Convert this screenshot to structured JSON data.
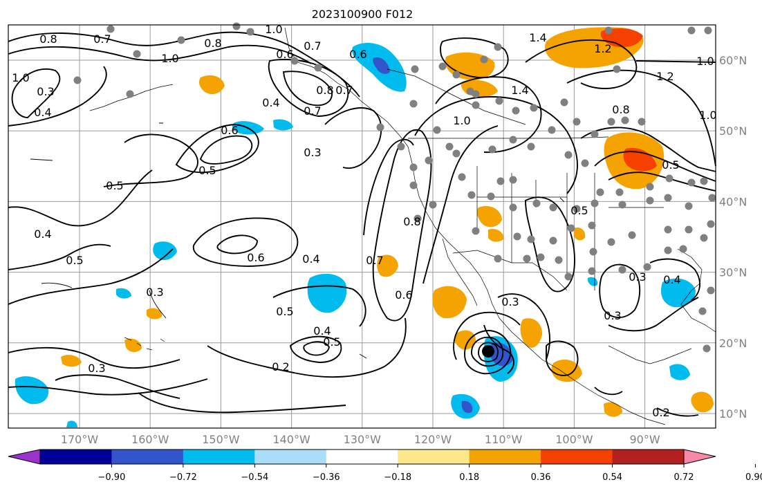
{
  "title": "2023100900 F012",
  "map": {
    "lon_ticks": [
      {
        "value": -170,
        "label": "170°W"
      },
      {
        "value": -160,
        "label": "160°W"
      },
      {
        "value": -150,
        "label": "150°W"
      },
      {
        "value": -140,
        "label": "140°W"
      },
      {
        "value": -130,
        "label": "130°W"
      },
      {
        "value": -120,
        "label": "120°W"
      },
      {
        "value": -110,
        "label": "110°W"
      },
      {
        "value": -100,
        "label": "100°W"
      },
      {
        "value": -90,
        "label": "90°W"
      }
    ],
    "lat_ticks": [
      {
        "value": 60,
        "label": "60°N"
      },
      {
        "value": 50,
        "label": "50°N"
      },
      {
        "value": 40,
        "label": "40°N"
      },
      {
        "value": 30,
        "label": "30°N"
      },
      {
        "value": 20,
        "label": "20°N"
      },
      {
        "value": 10,
        "label": "10°N"
      }
    ],
    "contour_labels": [
      "0.8",
      "0.7",
      "1.0",
      "0.6",
      "0.7",
      "0.8",
      "1.0",
      "1.4",
      "1.2",
      "1.0",
      "0.3",
      "0.4",
      "0.8",
      "0.7",
      "0.4",
      "0.7",
      "0.6",
      "0.3",
      "0.5",
      "0.5",
      "1.4",
      "1.0",
      "0.8",
      "1.2",
      "0.5",
      "1.0",
      "0.4",
      "0.5",
      "0.6",
      "0.4",
      "0.8",
      "0.5",
      "0.7",
      "0.6",
      "0.3",
      "0.5",
      "0.4",
      "0.5",
      "0.3",
      "0.2",
      "0.3",
      "0.4",
      "0.3",
      "0.2",
      "0.3",
      "1.0",
      "0.6"
    ]
  },
  "colorbar": {
    "colors": [
      "#9933cc",
      "#000099",
      "#3355cc",
      "#00bbee",
      "#aaddf8",
      "#ffffff",
      "#fae88a",
      "#f5a300",
      "#f54000",
      "#b32020",
      "#f888a8"
    ],
    "ticks": [
      "−0.90",
      "−0.72",
      "−0.54",
      "−0.36",
      "−0.18",
      "0.18",
      "0.36",
      "0.54",
      "0.72",
      "0.90"
    ]
  }
}
